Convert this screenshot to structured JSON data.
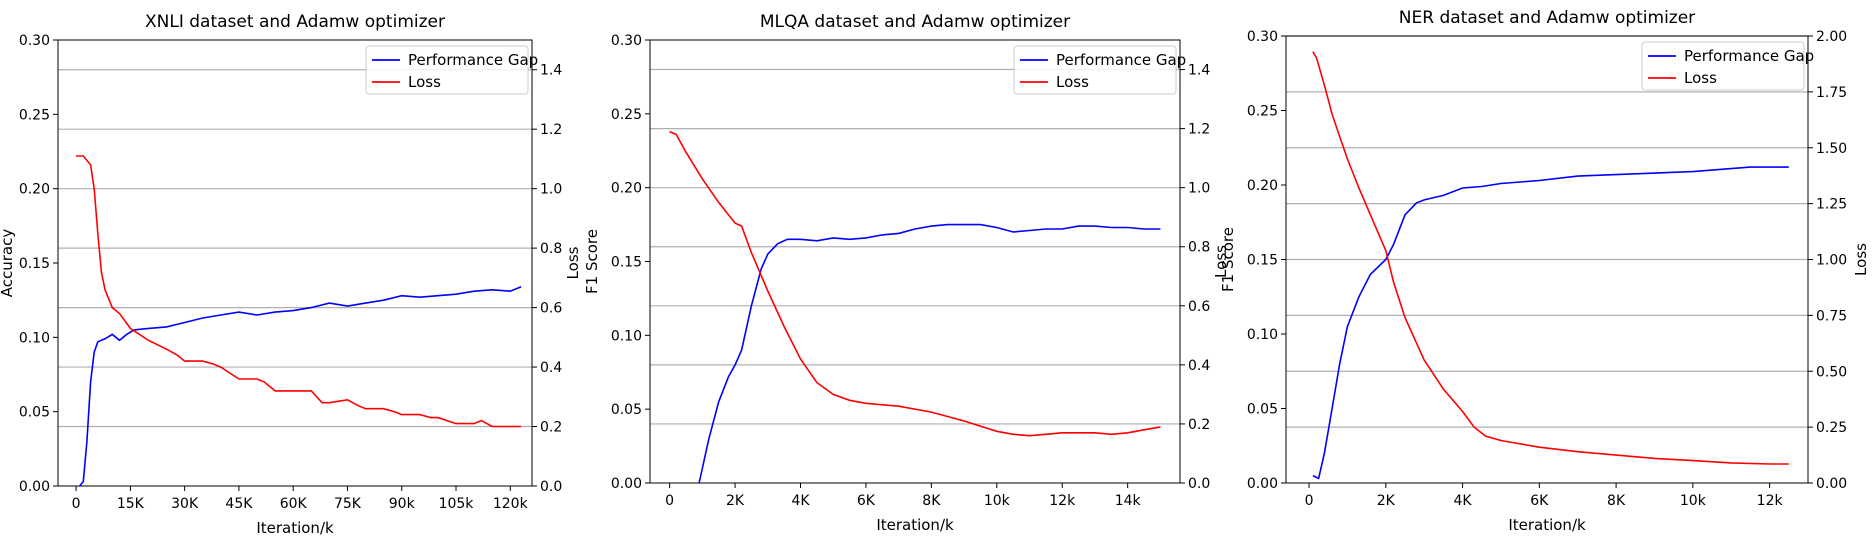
{
  "chart_data": [
    {
      "type": "line",
      "title": "XNLI dataset and Adamw optimizer",
      "xlabel": "Iteration/k",
      "ylabel": "Accuracy",
      "y2label": "Loss",
      "xlim": [
        -5,
        126
      ],
      "ylim": [
        0,
        0.3
      ],
      "y2lim": [
        0,
        1.5
      ],
      "xticks": [
        0,
        15,
        30,
        45,
        60,
        75,
        90,
        105,
        120
      ],
      "xtick_labels": [
        "0",
        "15K",
        "30K",
        "45K",
        "60K",
        "75K",
        "90k",
        "105k",
        "120k"
      ],
      "yticks": [
        0.0,
        0.05,
        0.1,
        0.15,
        0.2,
        0.25,
        0.3
      ],
      "ytick_labels": [
        "0.00",
        "0.05",
        "0.10",
        "0.15",
        "0.20",
        "0.25",
        "0.30"
      ],
      "y2ticks": [
        0.0,
        0.2,
        0.4,
        0.6,
        0.8,
        1.0,
        1.2,
        1.4
      ],
      "y2tick_labels": [
        "0.0",
        "0.2",
        "0.4",
        "0.6",
        "0.8",
        "1.0",
        "1.2",
        "1.4"
      ],
      "grid": "horizontal",
      "legend_position": "top-right",
      "series": [
        {
          "name": "Performance Gap",
          "axis": "left",
          "color": "#0000ff",
          "x": [
            1,
            2,
            3,
            4,
            5,
            6,
            8,
            10,
            12,
            14,
            16,
            20,
            25,
            30,
            35,
            40,
            45,
            50,
            55,
            60,
            65,
            70,
            75,
            80,
            85,
            90,
            95,
            100,
            105,
            110,
            115,
            120,
            123
          ],
          "y": [
            0.0,
            0.003,
            0.03,
            0.07,
            0.09,
            0.097,
            0.099,
            0.102,
            0.098,
            0.102,
            0.105,
            0.106,
            0.107,
            0.11,
            0.113,
            0.115,
            0.117,
            0.115,
            0.117,
            0.118,
            0.12,
            0.123,
            0.121,
            0.123,
            0.125,
            0.128,
            0.127,
            0.128,
            0.129,
            0.131,
            0.132,
            0.131,
            0.134
          ]
        },
        {
          "name": "Loss",
          "axis": "right",
          "color": "#ff0000",
          "x": [
            0,
            2,
            4,
            5,
            6,
            7,
            8,
            10,
            12,
            15,
            20,
            25,
            28,
            30,
            35,
            38,
            40,
            45,
            50,
            52,
            55,
            60,
            65,
            68,
            70,
            75,
            78,
            80,
            85,
            88,
            90,
            95,
            98,
            100,
            105,
            110,
            112,
            115,
            120,
            123
          ],
          "y": [
            1.11,
            1.11,
            1.08,
            1.0,
            0.85,
            0.72,
            0.66,
            0.6,
            0.58,
            0.53,
            0.49,
            0.46,
            0.44,
            0.42,
            0.42,
            0.41,
            0.4,
            0.36,
            0.36,
            0.35,
            0.32,
            0.32,
            0.32,
            0.28,
            0.28,
            0.29,
            0.27,
            0.26,
            0.26,
            0.25,
            0.24,
            0.24,
            0.23,
            0.23,
            0.21,
            0.21,
            0.22,
            0.2,
            0.2,
            0.2
          ]
        }
      ]
    },
    {
      "type": "line",
      "title": "MLQA dataset and Adamw optimizer",
      "xlabel": "Iteration/k",
      "ylabel": "F1 Score",
      "y2label": "Loss",
      "xlim": [
        -0.6,
        15.6
      ],
      "ylim": [
        0,
        0.3
      ],
      "y2lim": [
        0,
        1.5
      ],
      "xticks": [
        0,
        2,
        4,
        6,
        8,
        10,
        12,
        14
      ],
      "xtick_labels": [
        "0",
        "2K",
        "4K",
        "6K",
        "8K",
        "10k",
        "12k",
        "14k"
      ],
      "yticks": [
        0.0,
        0.05,
        0.1,
        0.15,
        0.2,
        0.25,
        0.3
      ],
      "ytick_labels": [
        "0.00",
        "0.05",
        "0.10",
        "0.15",
        "0.20",
        "0.25",
        "0.30"
      ],
      "y2ticks": [
        0.0,
        0.2,
        0.4,
        0.6,
        0.8,
        1.0,
        1.2,
        1.4
      ],
      "y2tick_labels": [
        "0.0",
        "0.2",
        "0.4",
        "0.6",
        "0.8",
        "1.0",
        "1.2",
        "1.4"
      ],
      "grid": "horizontal",
      "legend_position": "top-right",
      "series": [
        {
          "name": "Performance Gap",
          "axis": "left",
          "color": "#0000ff",
          "x": [
            0.9,
            1.2,
            1.5,
            1.8,
            2.0,
            2.2,
            2.5,
            2.8,
            3.0,
            3.3,
            3.6,
            4.0,
            4.5,
            5.0,
            5.5,
            6.0,
            6.5,
            7.0,
            7.5,
            8.0,
            8.5,
            9.0,
            9.5,
            10.0,
            10.5,
            11.0,
            11.5,
            12.0,
            12.5,
            13.0,
            13.5,
            14.0,
            14.5,
            15.0
          ],
          "y": [
            0.0,
            0.03,
            0.055,
            0.072,
            0.08,
            0.09,
            0.12,
            0.145,
            0.155,
            0.162,
            0.165,
            0.165,
            0.164,
            0.166,
            0.165,
            0.166,
            0.168,
            0.169,
            0.172,
            0.174,
            0.175,
            0.175,
            0.175,
            0.173,
            0.17,
            0.171,
            0.172,
            0.172,
            0.174,
            0.174,
            0.173,
            0.173,
            0.172,
            0.172
          ],
          "xmin_display": 0.9
        },
        {
          "name": "Loss",
          "axis": "right",
          "color": "#ff0000",
          "x": [
            0.0,
            0.2,
            0.5,
            1.0,
            1.5,
            2.0,
            2.2,
            2.5,
            3.0,
            3.5,
            4.0,
            4.5,
            5.0,
            5.5,
            6.0,
            7.0,
            8.0,
            9.0,
            10.0,
            10.5,
            11.0,
            11.5,
            12.0,
            12.5,
            13.0,
            13.5,
            14.0,
            14.5,
            15.0
          ],
          "y": [
            1.19,
            1.18,
            1.12,
            1.03,
            0.95,
            0.88,
            0.87,
            0.78,
            0.65,
            0.53,
            0.42,
            0.34,
            0.3,
            0.28,
            0.27,
            0.26,
            0.24,
            0.21,
            0.175,
            0.165,
            0.16,
            0.165,
            0.17,
            0.17,
            0.17,
            0.165,
            0.17,
            0.18,
            0.19
          ]
        }
      ]
    },
    {
      "type": "line",
      "title": "NER dataset and Adamw optimizer",
      "xlabel": "Iteration/k",
      "ylabel": "F1 Score",
      "y2label": "Loss",
      "xlim": [
        -0.6,
        13.0
      ],
      "ylim": [
        0,
        0.3
      ],
      "y2lim": [
        0,
        2.0
      ],
      "xticks": [
        0,
        2,
        4,
        6,
        8,
        10,
        12
      ],
      "xtick_labels": [
        "0",
        "2K",
        "4K",
        "6K",
        "8K",
        "10k",
        "12k"
      ],
      "yticks": [
        0.0,
        0.05,
        0.1,
        0.15,
        0.2,
        0.25,
        0.3
      ],
      "ytick_labels": [
        "0.00",
        "0.05",
        "0.10",
        "0.15",
        "0.20",
        "0.25",
        "0.30"
      ],
      "y2ticks": [
        0.0,
        0.25,
        0.5,
        0.75,
        1.0,
        1.25,
        1.5,
        1.75,
        2.0
      ],
      "y2tick_labels": [
        "0.00",
        "0.25",
        "0.50",
        "0.75",
        "1.00",
        "1.25",
        "1.50",
        "1.75",
        "2.00"
      ],
      "grid": "horizontal",
      "legend_position": "top-right",
      "series": [
        {
          "name": "Performance Gap",
          "axis": "left",
          "color": "#0000ff",
          "x": [
            0.1,
            0.25,
            0.4,
            0.6,
            0.8,
            1.0,
            1.3,
            1.6,
            2.0,
            2.2,
            2.5,
            2.8,
            3.0,
            3.5,
            4.0,
            4.5,
            5.0,
            6.0,
            7.0,
            8.0,
            9.0,
            10.0,
            10.5,
            11.0,
            11.5,
            12.0,
            12.5
          ],
          "y": [
            0.005,
            0.003,
            0.02,
            0.05,
            0.08,
            0.105,
            0.125,
            0.14,
            0.15,
            0.16,
            0.18,
            0.188,
            0.19,
            0.193,
            0.198,
            0.199,
            0.201,
            0.203,
            0.206,
            0.207,
            0.208,
            0.209,
            0.21,
            0.211,
            0.212,
            0.212,
            0.212
          ]
        },
        {
          "name": "Loss",
          "axis": "right",
          "color": "#ff0000",
          "x": [
            0.1,
            0.2,
            0.4,
            0.6,
            0.8,
            1.0,
            1.3,
            1.6,
            2.0,
            2.2,
            2.5,
            3.0,
            3.5,
            4.0,
            4.3,
            4.6,
            5.0,
            6.0,
            7.0,
            8.0,
            9.0,
            10.0,
            11.0,
            12.0,
            12.5
          ],
          "y": [
            1.93,
            1.9,
            1.78,
            1.65,
            1.55,
            1.45,
            1.32,
            1.2,
            1.04,
            0.9,
            0.74,
            0.55,
            0.42,
            0.32,
            0.25,
            0.21,
            0.19,
            0.16,
            0.14,
            0.125,
            0.11,
            0.1,
            0.09,
            0.085,
            0.085
          ]
        }
      ]
    }
  ]
}
